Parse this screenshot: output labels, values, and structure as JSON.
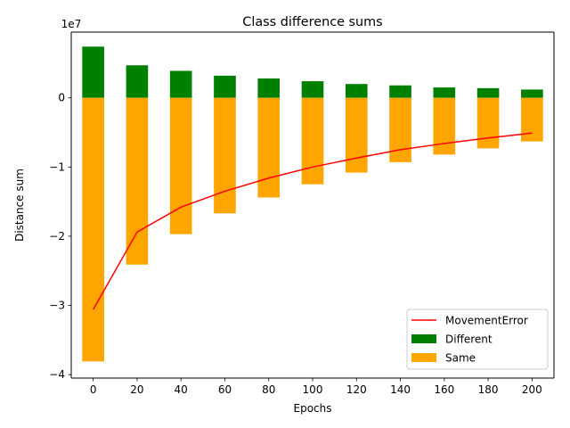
{
  "chart_data": {
    "type": "bar",
    "title": "Class difference sums",
    "xlabel": "Epochs",
    "ylabel": "Distance sum",
    "y_offset_label": "1e7",
    "x": [
      0,
      20,
      40,
      60,
      80,
      100,
      120,
      140,
      160,
      180,
      200
    ],
    "xticks": [
      "0",
      "20",
      "40",
      "60",
      "80",
      "100",
      "120",
      "140",
      "160",
      "180",
      "200"
    ],
    "yticks": [
      0,
      -1,
      -2,
      -3,
      -4
    ],
    "ytick_labels": [
      "0",
      "−1",
      "−2",
      "−3",
      "−4"
    ],
    "ylim": [
      -4.05,
      0.95
    ],
    "xlim": [
      -10,
      210
    ],
    "bar_width": 10,
    "grid": false,
    "legend_position": "lower-right",
    "series": [
      {
        "name": "Different",
        "kind": "bar",
        "color": "#008000",
        "values": [
          0.74,
          0.47,
          0.39,
          0.32,
          0.28,
          0.24,
          0.2,
          0.18,
          0.15,
          0.14,
          0.12
        ]
      },
      {
        "name": "Same",
        "kind": "bar",
        "color": "#FFA500",
        "values": [
          -3.81,
          -2.41,
          -1.97,
          -1.67,
          -1.44,
          -1.25,
          -1.08,
          -0.93,
          -0.82,
          -0.73,
          -0.63
        ]
      },
      {
        "name": "MovementError",
        "kind": "line",
        "color": "#FF0000",
        "values": [
          -3.06,
          -1.94,
          -1.58,
          -1.35,
          -1.16,
          -1.0,
          -0.87,
          -0.75,
          -0.66,
          -0.58,
          -0.51
        ]
      }
    ]
  }
}
